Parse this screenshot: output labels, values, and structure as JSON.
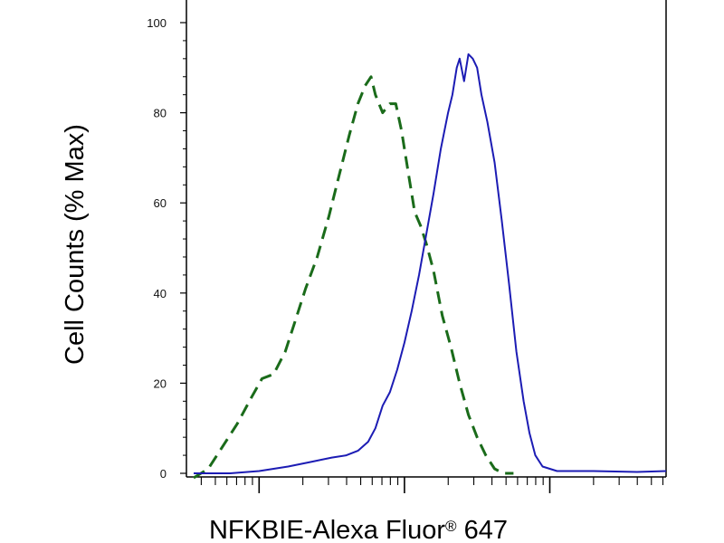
{
  "chart_data": {
    "type": "line",
    "title": "",
    "xlabel": "NFKBIE-Alexa Fluor® 647",
    "xlabel_main": "NFKBIE-Alexa Fluor",
    "xlabel_reg": "®",
    "xlabel_tail": " 647",
    "ylabel": "Cell Counts (% Max)",
    "x_scale": "log",
    "xlim_log10": [
      1.5,
      4.8
    ],
    "ylim": [
      0,
      100
    ],
    "y_ticks": [
      "0",
      "20",
      "40",
      "60",
      "80",
      "100"
    ],
    "y_tick_values": [
      0,
      20,
      40,
      60,
      80,
      100
    ],
    "grid": false,
    "series": [
      {
        "style": "dashed",
        "color": "#1a6b1a",
        "points": [
          [
            1.55,
            -1
          ],
          [
            1.65,
            1
          ],
          [
            1.75,
            6
          ],
          [
            1.85,
            11
          ],
          [
            1.95,
            17
          ],
          [
            2.02,
            21
          ],
          [
            2.1,
            22
          ],
          [
            2.18,
            27
          ],
          [
            2.25,
            34
          ],
          [
            2.32,
            41
          ],
          [
            2.4,
            48
          ],
          [
            2.48,
            57
          ],
          [
            2.55,
            66
          ],
          [
            2.62,
            75
          ],
          [
            2.68,
            82
          ],
          [
            2.73,
            86
          ],
          [
            2.77,
            88
          ],
          [
            2.8,
            84
          ],
          [
            2.85,
            80
          ],
          [
            2.9,
            82
          ],
          [
            2.94,
            82
          ],
          [
            2.98,
            76
          ],
          [
            3.03,
            66
          ],
          [
            3.07,
            58
          ],
          [
            3.11,
            55
          ],
          [
            3.15,
            51
          ],
          [
            3.2,
            45
          ],
          [
            3.26,
            35
          ],
          [
            3.32,
            28
          ],
          [
            3.38,
            20
          ],
          [
            3.44,
            13
          ],
          [
            3.5,
            8
          ],
          [
            3.56,
            4
          ],
          [
            3.62,
            1
          ],
          [
            3.68,
            0
          ],
          [
            3.75,
            0
          ]
        ]
      },
      {
        "style": "solid",
        "color": "#1c1cb4",
        "points": [
          [
            1.55,
            0
          ],
          [
            1.8,
            0
          ],
          [
            2.0,
            0.5
          ],
          [
            2.2,
            1.5
          ],
          [
            2.35,
            2.5
          ],
          [
            2.5,
            3.5
          ],
          [
            2.6,
            4
          ],
          [
            2.68,
            5
          ],
          [
            2.75,
            7
          ],
          [
            2.8,
            10
          ],
          [
            2.85,
            15
          ],
          [
            2.9,
            18
          ],
          [
            2.95,
            23
          ],
          [
            3.0,
            29
          ],
          [
            3.05,
            36
          ],
          [
            3.1,
            44
          ],
          [
            3.15,
            53
          ],
          [
            3.2,
            62
          ],
          [
            3.25,
            72
          ],
          [
            3.3,
            80
          ],
          [
            3.33,
            84
          ],
          [
            3.36,
            90
          ],
          [
            3.38,
            92
          ],
          [
            3.41,
            87
          ],
          [
            3.44,
            93
          ],
          [
            3.47,
            92
          ],
          [
            3.5,
            90
          ],
          [
            3.53,
            84
          ],
          [
            3.57,
            78
          ],
          [
            3.62,
            69
          ],
          [
            3.67,
            56
          ],
          [
            3.72,
            42
          ],
          [
            3.77,
            27
          ],
          [
            3.82,
            16
          ],
          [
            3.86,
            9
          ],
          [
            3.9,
            4
          ],
          [
            3.95,
            1.5
          ],
          [
            4.05,
            0.5
          ],
          [
            4.3,
            0.5
          ],
          [
            4.6,
            0.3
          ],
          [
            4.8,
            0.5
          ]
        ]
      }
    ]
  }
}
